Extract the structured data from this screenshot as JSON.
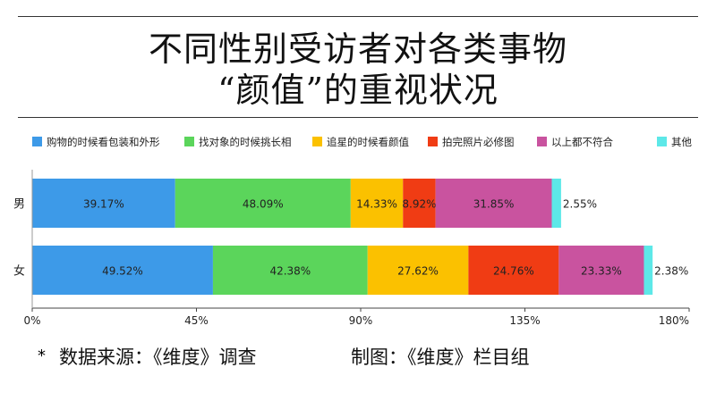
{
  "title_line1": "不同性别受访者对各类事物",
  "title_line2": "“颜值”的重视状况",
  "source_left": "数据来源：《维度》调查",
  "source_right": "制图：《维度》栏目组",
  "chart_data": {
    "type": "bar",
    "orientation": "horizontal",
    "stacked": true,
    "categories": [
      "男",
      "女"
    ],
    "series": [
      {
        "name": "购物的时候看包装和外形",
        "color": "#3d9ae8",
        "values": [
          39.17,
          49.52
        ]
      },
      {
        "name": "找对象的时候挑长相",
        "color": "#5bd55b",
        "values": [
          48.09,
          42.38
        ]
      },
      {
        "name": "追星的时候看颜值",
        "color": "#fbc100",
        "values": [
          14.33,
          27.62
        ]
      },
      {
        "name": "拍完照片必修图",
        "color": "#f03c14",
        "values": [
          8.92,
          24.76
        ]
      },
      {
        "name": "以上都不符合",
        "color": "#c9539f",
        "values": [
          31.85,
          23.33
        ]
      },
      {
        "name": "其他",
        "color": "#5de8e8",
        "values": [
          2.55,
          2.38
        ]
      }
    ],
    "data_labels": [
      [
        "39.17%",
        "48.09%",
        "14.33%",
        "8.92%",
        "31.85%",
        "2.55%"
      ],
      [
        "49.52%",
        "42.38%",
        "27.62%",
        "24.76%",
        "23.33%",
        "2.38%"
      ]
    ],
    "xlim": [
      0,
      180
    ],
    "xticks": [
      0,
      45,
      90,
      135,
      180
    ],
    "xtick_labels": [
      "0%",
      "45%",
      "90%",
      "135%",
      "180%"
    ],
    "legend_position": "top",
    "grid": false
  }
}
